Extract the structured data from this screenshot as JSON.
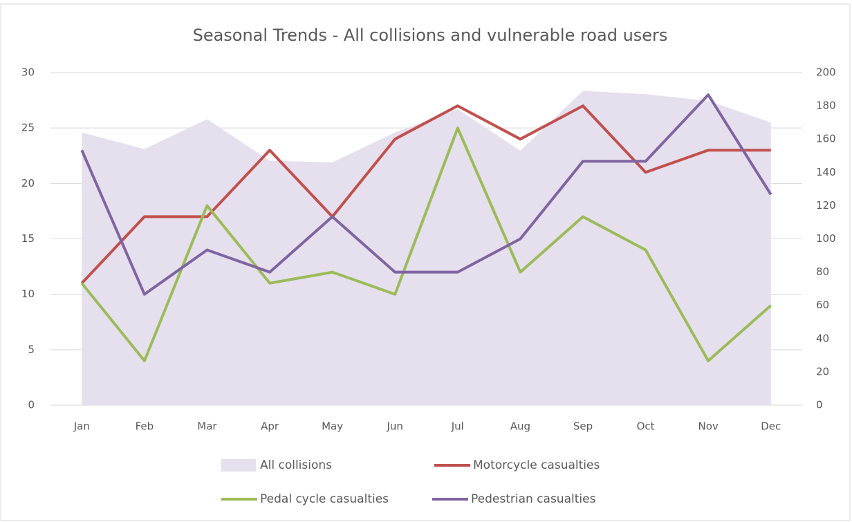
{
  "chart_data": {
    "type": "line",
    "title": "Seasonal Trends - All collisions and vulnerable road users",
    "categories": [
      "Jan",
      "Feb",
      "Mar",
      "Apr",
      "May",
      "Jun",
      "Jul",
      "Aug",
      "Sep",
      "Oct",
      "Nov",
      "Dec"
    ],
    "ylim": [
      0,
      30
    ],
    "yticks": [
      0,
      5,
      10,
      15,
      20,
      25,
      30
    ],
    "y2lim": [
      0,
      200
    ],
    "y2ticks": [
      0,
      20,
      40,
      60,
      80,
      100,
      120,
      140,
      160,
      180,
      200
    ],
    "grid": true,
    "legend": "bottom",
    "series": [
      {
        "name": "All collisions",
        "type": "area",
        "axis": "y2",
        "color": "#e6dfed",
        "values": [
          164,
          154,
          172,
          147,
          146,
          164,
          178,
          153,
          189,
          187,
          183,
          170
        ]
      },
      {
        "name": "Motorcycle casualties",
        "color": "#c0504d",
        "values": [
          11,
          17,
          17,
          23,
          17,
          24,
          27,
          24,
          27,
          21,
          23,
          23
        ]
      },
      {
        "name": "Pedal cycle casualties",
        "color": "#9bbb59",
        "values": [
          11,
          4,
          18,
          11,
          12,
          10,
          25,
          12,
          17,
          14,
          4,
          9
        ]
      },
      {
        "name": "Pedestrian casualties",
        "color": "#8064a2",
        "values": [
          23,
          10,
          14,
          12,
          17,
          12,
          12,
          15,
          22,
          22,
          28,
          19
        ]
      }
    ]
  }
}
